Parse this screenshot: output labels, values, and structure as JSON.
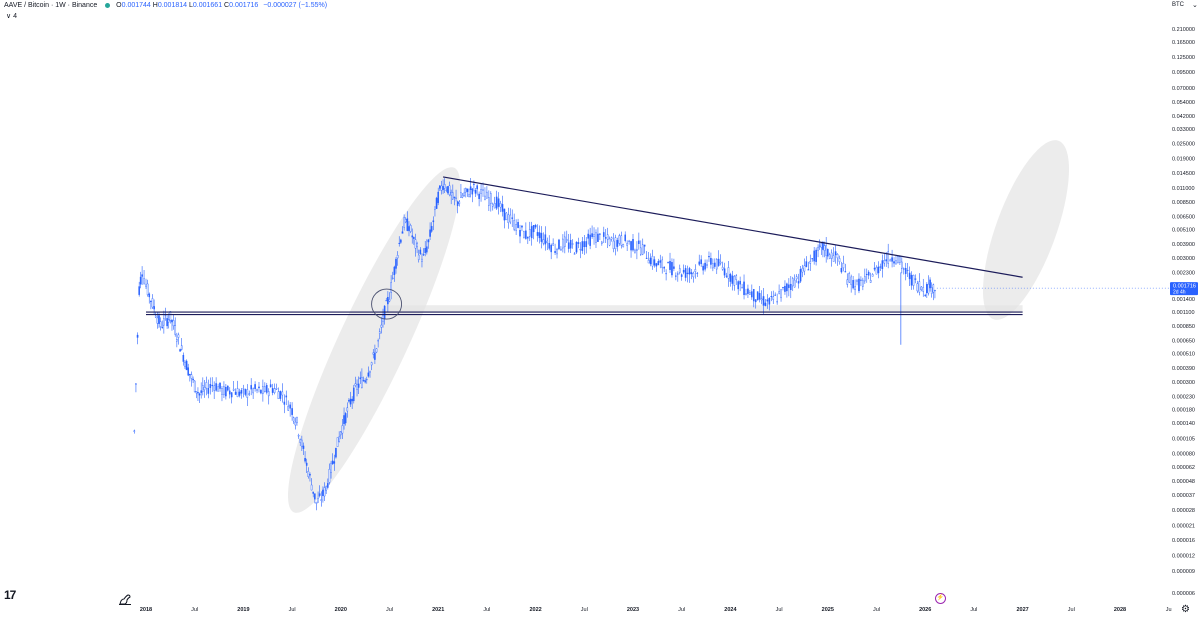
{
  "legend": {
    "symbol": "AAVE / Bitcoin · 1W · Binance",
    "open_label": "O",
    "open": "0.001744",
    "high_label": "H",
    "high": "0.001814",
    "low_label": "L",
    "low": "0.001661",
    "close_label": "C",
    "close": "0.001716",
    "change": "−0.000027 (−1.55%)",
    "collapse_label": "∨ 4"
  },
  "price_axis_currency": "BTC",
  "price_tag": {
    "price": "0.001716",
    "countdown": "2d 4h"
  },
  "colors": {
    "candles": "#2962ff",
    "trendlines": "#1c1c5a",
    "highlight_shapes": "#e4e4e4",
    "price_tag_bg": "#2962ff",
    "status_dot": "#26a69a",
    "event_icon": "#9c27b0"
  },
  "icons": [
    "tradingview-logo",
    "dino-icon",
    "gear-icon",
    "event-icon"
  ],
  "chart_data": {
    "type": "candlestick",
    "y_scale": "log",
    "ylim": [
      6e-06,
      0.21
    ],
    "y_ticks": [
      "0.210000",
      "0.165000",
      "0.125000",
      "0.095000",
      "0.070000",
      "0.054000",
      "0.042000",
      "0.033000",
      "0.025000",
      "0.019000",
      "0.014500",
      "0.011000",
      "0.008500",
      "0.006500",
      "0.005100",
      "0.003900",
      "0.003000",
      "0.002300",
      "0.001400",
      "0.001100",
      "0.000850",
      "0.000650",
      "0.000510",
      "0.000390",
      "0.000300",
      "0.000230",
      "0.000180",
      "0.000140",
      "0.000105",
      "0.000080",
      "0.000062",
      "0.000048",
      "0.000037",
      "0.000028",
      "0.000021",
      "0.000016",
      "0.000012",
      "0.000009",
      "0.000006"
    ],
    "x_ticks": [
      "2018",
      "Jul",
      "2019",
      "Jul",
      "2020",
      "Jul",
      "2021",
      "Jul",
      "2022",
      "Jul",
      "2023",
      "Jul",
      "2024",
      "Jul",
      "2025",
      "Jul",
      "2026",
      "Jul",
      "2027",
      "Jul",
      "2028",
      "Ju"
    ],
    "xlim": [
      2017.9,
      2028.5
    ],
    "series": [
      {
        "points": [
          [
            2017.88,
            0.00012
          ],
          [
            2017.93,
            0.0017
          ],
          [
            2017.96,
            0.0024
          ],
          [
            2018.0,
            0.0018
          ],
          [
            2018.05,
            0.0014
          ],
          [
            2018.1,
            0.0011
          ],
          [
            2018.15,
            0.00085
          ],
          [
            2018.2,
            0.00095
          ],
          [
            2018.25,
            0.001
          ],
          [
            2018.3,
            0.0008
          ],
          [
            2018.35,
            0.0006
          ],
          [
            2018.4,
            0.00045
          ],
          [
            2018.45,
            0.00035
          ],
          [
            2018.5,
            0.00028
          ],
          [
            2018.55,
            0.00024
          ],
          [
            2018.6,
            0.00026
          ],
          [
            2018.7,
            0.00029
          ],
          [
            2018.8,
            0.00025
          ],
          [
            2018.9,
            0.00026
          ],
          [
            2019.0,
            0.00024
          ],
          [
            2019.1,
            0.00026
          ],
          [
            2019.2,
            0.00025
          ],
          [
            2019.3,
            0.00027
          ],
          [
            2019.4,
            0.00024
          ],
          [
            2019.5,
            0.00018
          ],
          [
            2019.55,
            0.00014
          ],
          [
            2019.6,
            9.5e-05
          ],
          [
            2019.65,
            6.5e-05
          ],
          [
            2019.7,
            4.5e-05
          ],
          [
            2019.75,
            3.2e-05
          ],
          [
            2019.8,
            3.5e-05
          ],
          [
            2019.85,
            4.2e-05
          ],
          [
            2019.9,
            6e-05
          ],
          [
            2019.95,
            8.5e-05
          ],
          [
            2020.0,
            0.00012
          ],
          [
            2020.05,
            0.00016
          ],
          [
            2020.1,
            0.00021
          ],
          [
            2020.15,
            0.00026
          ],
          [
            2020.2,
            0.0003
          ],
          [
            2020.25,
            0.00032
          ],
          [
            2020.3,
            0.0004
          ],
          [
            2020.35,
            0.0005
          ],
          [
            2020.4,
            0.0007
          ],
          [
            2020.45,
            0.0011
          ],
          [
            2020.5,
            0.0015
          ],
          [
            2020.55,
            0.0024
          ],
          [
            2020.6,
            0.0039
          ],
          [
            2020.65,
            0.0057
          ],
          [
            2020.7,
            0.0055
          ],
          [
            2020.75,
            0.0041
          ],
          [
            2020.8,
            0.0033
          ],
          [
            2020.85,
            0.003
          ],
          [
            2020.9,
            0.004
          ],
          [
            2020.95,
            0.006
          ],
          [
            2021.0,
            0.0095
          ],
          [
            2021.05,
            0.012
          ],
          [
            2021.1,
            0.011
          ],
          [
            2021.15,
            0.009
          ],
          [
            2021.2,
            0.0085
          ],
          [
            2021.25,
            0.0095
          ],
          [
            2021.3,
            0.01
          ],
          [
            2021.35,
            0.011
          ],
          [
            2021.4,
            0.0105
          ],
          [
            2021.5,
            0.0092
          ],
          [
            2021.6,
            0.0085
          ],
          [
            2021.7,
            0.0065
          ],
          [
            2021.8,
            0.0055
          ],
          [
            2021.9,
            0.0046
          ],
          [
            2022.0,
            0.005
          ],
          [
            2022.1,
            0.0042
          ],
          [
            2022.2,
            0.0036
          ],
          [
            2022.3,
            0.004
          ],
          [
            2022.4,
            0.0036
          ],
          [
            2022.5,
            0.004
          ],
          [
            2022.6,
            0.0045
          ],
          [
            2022.7,
            0.0043
          ],
          [
            2022.8,
            0.004
          ],
          [
            2022.9,
            0.0042
          ],
          [
            2023.0,
            0.0038
          ],
          [
            2023.1,
            0.0036
          ],
          [
            2023.2,
            0.0028
          ],
          [
            2023.3,
            0.0026
          ],
          [
            2023.4,
            0.0025
          ],
          [
            2023.5,
            0.0023
          ],
          [
            2023.6,
            0.0023
          ],
          [
            2023.7,
            0.0026
          ],
          [
            2023.8,
            0.0028
          ],
          [
            2023.9,
            0.0026
          ],
          [
            2024.0,
            0.0022
          ],
          [
            2024.1,
            0.0018
          ],
          [
            2024.2,
            0.0016
          ],
          [
            2024.3,
            0.0014
          ],
          [
            2024.4,
            0.0013
          ],
          [
            2024.5,
            0.0015
          ],
          [
            2024.6,
            0.0018
          ],
          [
            2024.7,
            0.0021
          ],
          [
            2024.8,
            0.0027
          ],
          [
            2024.9,
            0.0033
          ],
          [
            2024.95,
            0.0037
          ],
          [
            2025.0,
            0.0033
          ],
          [
            2025.1,
            0.003
          ],
          [
            2025.2,
            0.0021
          ],
          [
            2025.3,
            0.0018
          ],
          [
            2025.4,
            0.002
          ],
          [
            2025.5,
            0.0024
          ],
          [
            2025.6,
            0.003
          ],
          [
            2025.7,
            0.0031
          ],
          [
            2025.8,
            0.0023
          ],
          [
            2025.9,
            0.0019
          ],
          [
            2026.0,
            0.0017
          ],
          [
            2026.05,
            0.0018
          ],
          [
            2026.1,
            0.0017
          ],
          [
            2026.12,
            0.001716
          ]
        ]
      }
    ],
    "annotations": {
      "descending_trendline": [
        [
          2021.05,
          0.0135
        ],
        [
          2027.0,
          0.0021
        ]
      ],
      "support_lines": [
        0.00105,
        0.0011
      ],
      "support_zone": [
        0.00109,
        0.00125
      ],
      "circle_at": [
        2020.47,
        0.0011
      ],
      "wick_low": [
        2025.75,
        0.0006
      ]
    }
  }
}
